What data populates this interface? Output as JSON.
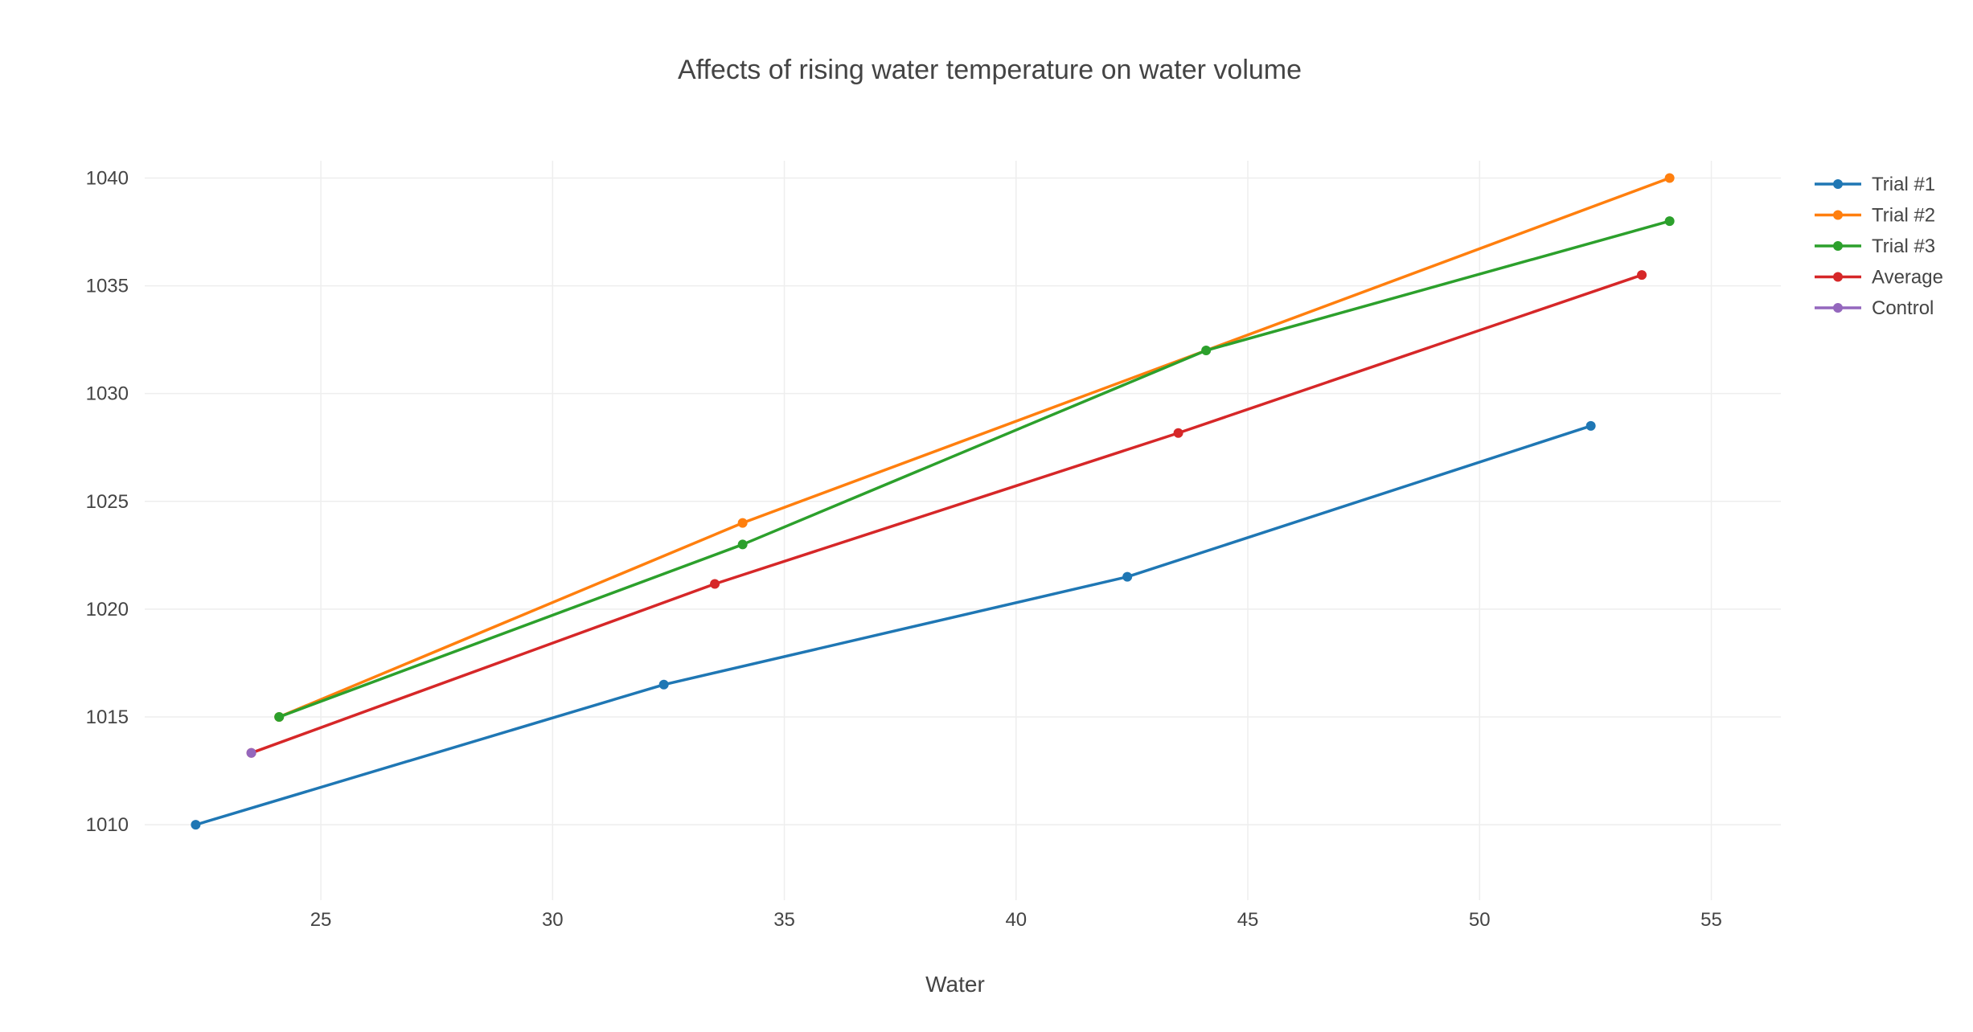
{
  "chart_data": {
    "type": "line",
    "title": "Affects of rising water temperature on water volume",
    "xlabel": "Water",
    "ylabel": "",
    "xlim": [
      21.2,
      56.5
    ],
    "ylim": [
      1006.5,
      1040.8
    ],
    "xticks": [
      25,
      30,
      35,
      40,
      45,
      50,
      55
    ],
    "yticks": [
      1010,
      1015,
      1020,
      1025,
      1030,
      1035,
      1040
    ],
    "grid": true,
    "legend_position": "top-right",
    "series": [
      {
        "name": "Trial #1",
        "color": "#1f77b4",
        "x": [
          22.3,
          32.4,
          42.4,
          52.4
        ],
        "y": [
          1010,
          1016.5,
          1021.5,
          1028.5
        ]
      },
      {
        "name": "Trial #2",
        "color": "#ff7f0e",
        "x": [
          24.1,
          34.1,
          54.1
        ],
        "y": [
          1015,
          1024,
          1040
        ]
      },
      {
        "name": "Trial #3",
        "color": "#2ca02c",
        "x": [
          24.1,
          34.1,
          44.1,
          54.1
        ],
        "y": [
          1015,
          1023,
          1032,
          1038
        ]
      },
      {
        "name": "Average",
        "color": "#d62728",
        "x": [
          23.5,
          33.5,
          43.5,
          53.5
        ],
        "y": [
          1013.33,
          1021.17,
          1028.17,
          1035.5
        ]
      },
      {
        "name": "Control",
        "color": "#9467bd",
        "x": [
          23.5
        ],
        "y": [
          1013.33
        ]
      }
    ]
  }
}
